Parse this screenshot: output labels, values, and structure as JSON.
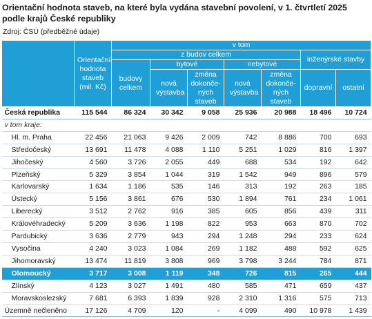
{
  "title": "Orientační hodnota staveb, na které byla vydána stavební povolení, v 1. čtvrtletí 2025 podle krajů České republiky",
  "source": "Zdroj: ČSÚ (předběžné údaje)",
  "header": {
    "orient": "Orientační hodnota staveb (mil. Kč)",
    "v_tom": "v tom",
    "z_budov": "z budov celkem",
    "inzenyrske": "inženýrské stavby",
    "budovy": "budovy celkem",
    "bytove": "bytové",
    "nebytove": "nebytové",
    "nova1": "nová výstavba",
    "zmena1": "změna dokonče-ných staveb",
    "nova2": "nová výstavba",
    "zmena2": "změna dokonče-ných staveb",
    "dopravni": "dopravní",
    "ostatni": "ostatní"
  },
  "total": {
    "name": "Česká republika",
    "vals": [
      "115 544",
      "86 324",
      "30 342",
      "9 058",
      "25 936",
      "20 988",
      "18 496",
      "10 724"
    ]
  },
  "v_tom_kraje": "v tom kraje:",
  "rows": [
    {
      "name": "Hl. m. Praha",
      "vals": [
        "22 456",
        "21 063",
        "9 426",
        "2 009",
        "742",
        "8 886",
        "700",
        "693"
      ]
    },
    {
      "name": "Středočeský",
      "vals": [
        "13 691",
        "11 478",
        "4 088",
        "1 110",
        "5 251",
        "1 029",
        "816",
        "1 397"
      ]
    },
    {
      "name": "Jihočeský",
      "vals": [
        "4 560",
        "3 726",
        "2 055",
        "449",
        "688",
        "534",
        "192",
        "642"
      ]
    },
    {
      "name": "Plzeňský",
      "vals": [
        "5 329",
        "3 854",
        "1 044",
        "319",
        "1 542",
        "949",
        "896",
        "579"
      ]
    },
    {
      "name": "Karlovarský",
      "vals": [
        "1 634",
        "1 186",
        "535",
        "146",
        "313",
        "192",
        "263",
        "185"
      ]
    },
    {
      "name": "Ústecký",
      "vals": [
        "5 156",
        "3 861",
        "676",
        "530",
        "1 894",
        "761",
        "234",
        "1 061"
      ]
    },
    {
      "name": "Liberecký",
      "vals": [
        "3 512",
        "2 762",
        "916",
        "385",
        "605",
        "856",
        "439",
        "311"
      ]
    },
    {
      "name": "Královéhradecký",
      "vals": [
        "5 209",
        "3 636",
        "1 198",
        "822",
        "953",
        "663",
        "870",
        "702"
      ]
    },
    {
      "name": "Pardubický",
      "vals": [
        "3 636",
        "2 779",
        "943",
        "294",
        "1 248",
        "294",
        "233",
        "624"
      ]
    },
    {
      "name": "Vysočina",
      "vals": [
        "4 240",
        "3 023",
        "1 084",
        "269",
        "1 182",
        "488",
        "592",
        "625"
      ]
    },
    {
      "name": "Jihomoravský",
      "vals": [
        "13 474",
        "11 819",
        "3 808",
        "969",
        "3 798",
        "3 244",
        "784",
        "871"
      ]
    },
    {
      "name": "Olomoucký",
      "vals": [
        "3 717",
        "3 008",
        "1 119",
        "348",
        "726",
        "815",
        "265",
        "444"
      ]
    },
    {
      "name": "Zlínský",
      "vals": [
        "4 123",
        "3 027",
        "1 491",
        "480",
        "585",
        "471",
        "659",
        "437"
      ]
    },
    {
      "name": "Moravskoslezský",
      "vals": [
        "7 681",
        "6 393",
        "1 839",
        "928",
        "2 310",
        "1 316",
        "575",
        "713"
      ]
    }
  ],
  "uzemne": {
    "name": "Územně nečleněno",
    "vals": [
      "17 126",
      "4 709",
      "120",
      "-",
      "4 099",
      "490",
      "10 978",
      "1 439"
    ]
  },
  "highlight_row": "Olomoucký",
  "colors": {
    "header_bg": "#1f9fd6",
    "highlight_bg": "#1f9fd6",
    "header_text": "#ffffff"
  }
}
